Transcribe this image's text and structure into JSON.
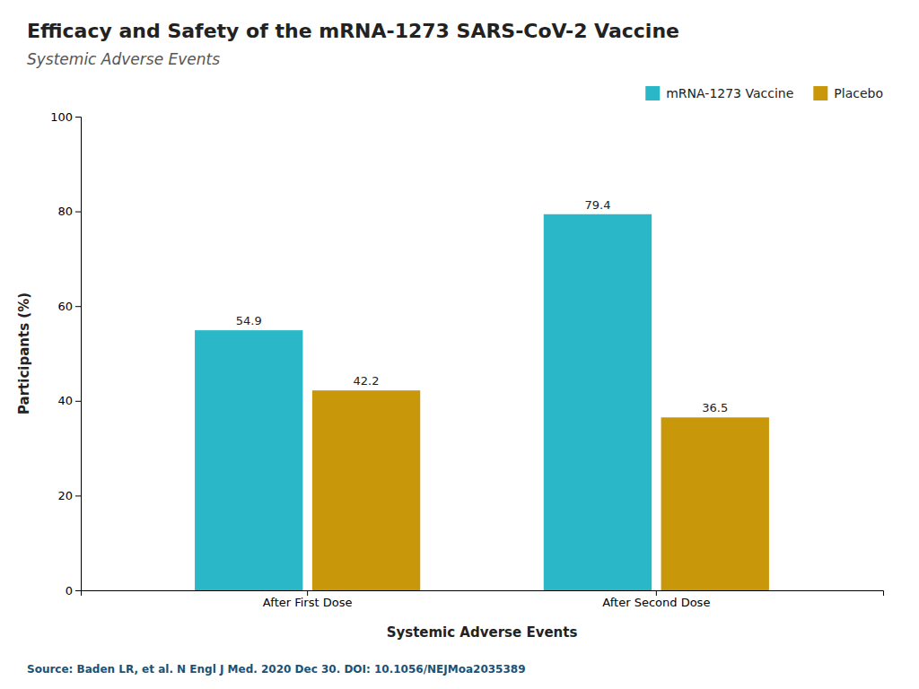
{
  "chart_data": {
    "type": "bar",
    "title": "Efficacy and Safety of the mRNA-1273 SARS-CoV-2 Vaccine",
    "subtitle": "Systemic Adverse Events",
    "categories": [
      "After First Dose",
      "After Second Dose"
    ],
    "series": [
      {
        "name": "mRNA-1273 Vaccine",
        "color": "#2ab8c8",
        "values": [
          54.9,
          79.4
        ]
      },
      {
        "name": "Placebo",
        "color": "#c8980a",
        "values": [
          42.2,
          36.5
        ]
      }
    ],
    "x_label": "Systemic Adverse Events",
    "y_label": "Participants (%)",
    "ylim": [
      0,
      100
    ],
    "yticks": [
      0,
      20,
      40,
      60,
      80,
      100
    ],
    "grid": false,
    "legend": "top-right",
    "data_labels": true,
    "source": "Source: Baden LR, et al. N Engl J Med. 2020 Dec 30. DOI: 10.1056/NEJMoa2035389"
  }
}
